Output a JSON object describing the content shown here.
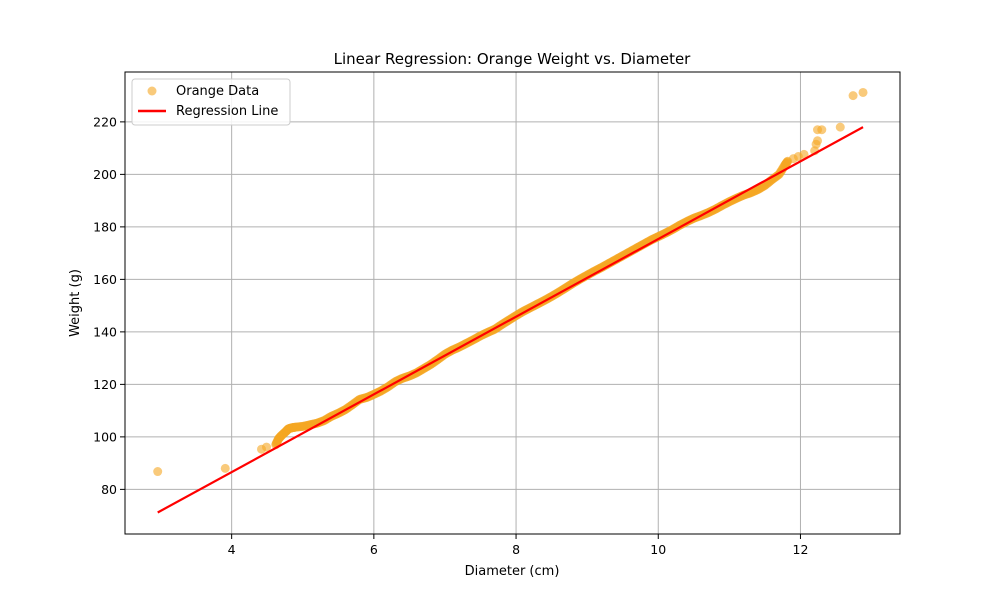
{
  "chart_data": {
    "type": "scatter",
    "title": "Linear Regression: Orange Weight vs. Diameter",
    "xlabel": "Diameter (cm)",
    "ylabel": "Weight (g)",
    "xlim": [
      2.5,
      13.4
    ],
    "ylim": [
      63,
      239
    ],
    "xticks": [
      4,
      6,
      8,
      10,
      12
    ],
    "yticks": [
      80,
      100,
      120,
      140,
      160,
      180,
      200,
      220
    ],
    "grid": true,
    "legend_position": "top-left",
    "series": [
      {
        "name": "Orange Data",
        "kind": "scatter",
        "color": "#f5a623",
        "points": [
          [
            2.96,
            86.8
          ],
          [
            3.91,
            88.0
          ],
          [
            4.42,
            95.3
          ],
          [
            4.49,
            96.1
          ],
          [
            4.62,
            97.0
          ],
          [
            4.66,
            99.3
          ],
          [
            4.7,
            100.5
          ],
          [
            4.76,
            102.0
          ],
          [
            4.8,
            103.1
          ],
          [
            4.85,
            103.5
          ],
          [
            4.9,
            103.7
          ],
          [
            5.0,
            104.0
          ],
          [
            5.1,
            104.6
          ],
          [
            5.2,
            105.2
          ],
          [
            5.3,
            106.2
          ],
          [
            5.4,
            107.8
          ],
          [
            5.5,
            109.0
          ],
          [
            5.6,
            110.4
          ],
          [
            5.7,
            112.3
          ],
          [
            5.8,
            114.3
          ],
          [
            5.9,
            115.0
          ],
          [
            6.0,
            116.2
          ],
          [
            6.1,
            117.5
          ],
          [
            6.2,
            119.1
          ],
          [
            6.3,
            121.0
          ],
          [
            6.4,
            122.3
          ],
          [
            6.5,
            123.2
          ],
          [
            6.6,
            124.4
          ],
          [
            6.7,
            126.0
          ],
          [
            6.8,
            127.6
          ],
          [
            6.9,
            129.5
          ],
          [
            7.0,
            131.5
          ],
          [
            7.1,
            133.0
          ],
          [
            7.2,
            134.2
          ],
          [
            7.3,
            135.6
          ],
          [
            7.4,
            137.0
          ],
          [
            7.5,
            138.5
          ],
          [
            7.6,
            139.8
          ],
          [
            7.7,
            141.0
          ],
          [
            7.8,
            142.8
          ],
          [
            7.9,
            144.5
          ],
          [
            8.0,
            146.2
          ],
          [
            8.1,
            147.8
          ],
          [
            8.2,
            149.2
          ],
          [
            8.3,
            150.6
          ],
          [
            8.4,
            152.0
          ],
          [
            8.5,
            153.5
          ],
          [
            8.6,
            155.1
          ],
          [
            8.7,
            156.8
          ],
          [
            8.8,
            158.5
          ],
          [
            8.9,
            160.1
          ],
          [
            9.0,
            161.6
          ],
          [
            9.1,
            163.1
          ],
          [
            9.2,
            164.5
          ],
          [
            9.3,
            166.0
          ],
          [
            9.4,
            167.5
          ],
          [
            9.5,
            169.0
          ],
          [
            9.6,
            170.5
          ],
          [
            9.7,
            172.0
          ],
          [
            9.8,
            173.5
          ],
          [
            9.9,
            175.0
          ],
          [
            10.0,
            176.3
          ],
          [
            10.1,
            177.6
          ],
          [
            10.2,
            179.0
          ],
          [
            10.3,
            180.6
          ],
          [
            10.4,
            182.0
          ],
          [
            10.5,
            183.3
          ],
          [
            10.6,
            184.3
          ],
          [
            10.7,
            185.4
          ],
          [
            10.8,
            186.7
          ],
          [
            10.9,
            188.2
          ],
          [
            11.0,
            189.6
          ],
          [
            11.1,
            190.9
          ],
          [
            11.2,
            192.1
          ],
          [
            11.3,
            193.0
          ],
          [
            11.4,
            194.2
          ],
          [
            11.5,
            195.8
          ],
          [
            11.6,
            198.0
          ],
          [
            11.7,
            200.0
          ],
          [
            11.78,
            203.5
          ],
          [
            11.82,
            205.0
          ],
          [
            11.9,
            206.0
          ],
          [
            11.97,
            206.8
          ],
          [
            12.05,
            207.6
          ],
          [
            12.2,
            209.0
          ],
          [
            12.22,
            211.5
          ],
          [
            12.24,
            212.8
          ],
          [
            12.24,
            217.0
          ],
          [
            12.3,
            217.0
          ],
          [
            12.56,
            218.0
          ],
          [
            12.74,
            230.0
          ],
          [
            12.88,
            231.2
          ]
        ]
      },
      {
        "name": "Regression Line",
        "kind": "line",
        "color": "#ff0000",
        "x": [
          2.96,
          12.88
        ],
        "y": [
          71.2,
          218.0
        ]
      }
    ]
  }
}
